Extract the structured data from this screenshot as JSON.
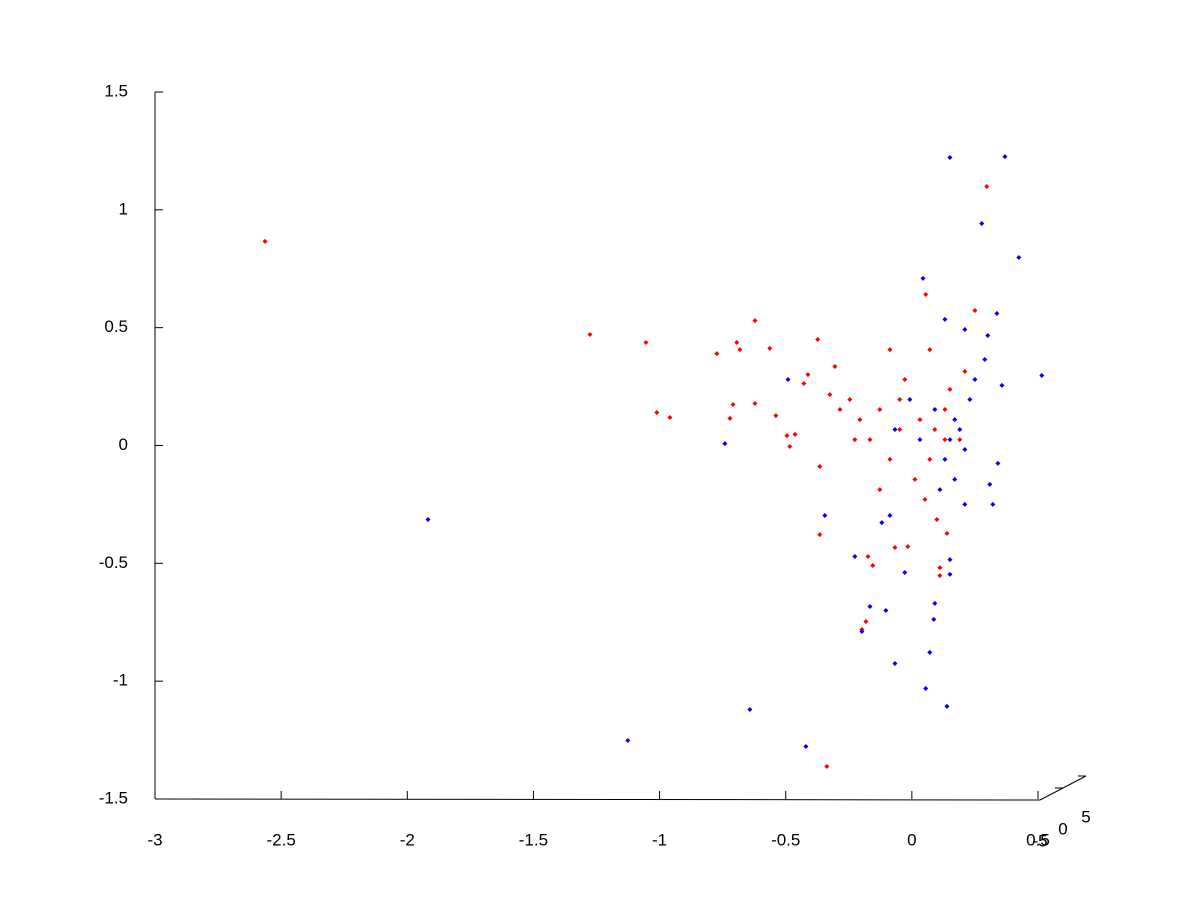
{
  "chart_data": {
    "type": "scatter",
    "xlim": [
      -3,
      0.5
    ],
    "xticks": [
      -3,
      -2.5,
      -2,
      -1.5,
      -1,
      -0.5,
      0,
      0.5
    ],
    "ylim": [
      -1.5,
      1.5
    ],
    "yticks": [
      -1.5,
      -1,
      -0.5,
      0,
      0.5,
      1,
      1.5
    ],
    "zlim": [
      -5,
      5
    ],
    "zticks": [
      -5,
      0,
      5
    ],
    "series": [
      {
        "color": "#ff0000",
        "x": [
          -2.564,
          -1.276,
          -1.054,
          -1.011,
          -0.959,
          -0.773,
          -0.694,
          -0.682,
          -0.622,
          -0.563,
          -0.709,
          -0.721,
          -0.622,
          -0.539,
          -0.495,
          -0.463,
          -0.484,
          -0.428,
          -0.412,
          -0.373,
          -0.305,
          -0.365,
          -0.365,
          -0.337,
          -0.198,
          -0.182,
          -0.155,
          -0.174,
          -0.067,
          -0.016,
          0.055,
          0.111,
          0.111,
          0.139,
          0.297,
          0.25,
          0.21,
          -0.246,
          -0.206,
          -0.127,
          -0.048,
          0.032,
          0.091,
          0.131,
          0.071,
          0.012,
          -0.087,
          -0.166,
          -0.285,
          -0.325,
          -0.028,
          -0.087,
          0.071,
          0.151,
          0.19,
          0.052,
          0.099,
          -0.127,
          -0.048,
          0.131,
          -0.226
        ],
        "values": [
          0.866,
          0.471,
          0.437,
          0.14,
          0.119,
          0.39,
          0.437,
          0.407,
          0.53,
          0.412,
          0.174,
          0.115,
          0.178,
          0.127,
          0.042,
          0.047,
          -0.004,
          0.263,
          0.301,
          0.45,
          0.335,
          -0.089,
          -0.378,
          -1.362,
          -0.781,
          -0.747,
          -0.509,
          -0.471,
          -0.433,
          -0.429,
          0.641,
          -0.518,
          -0.552,
          -0.373,
          1.099,
          0.573,
          0.314,
          0.195,
          0.11,
          0.153,
          0.068,
          0.11,
          0.068,
          0.025,
          -0.059,
          -0.144,
          -0.059,
          0.025,
          0.153,
          0.216,
          0.28,
          0.407,
          0.407,
          0.238,
          0.025,
          -0.229,
          -0.314,
          -0.187,
          0.195,
          0.153,
          0.025
        ]
      },
      {
        "color": "#0000ff",
        "x": [
          -1.918,
          -1.126,
          -0.642,
          -0.42,
          -0.741,
          -0.491,
          -0.345,
          -0.226,
          -0.198,
          -0.166,
          -0.103,
          -0.067,
          -0.028,
          0.055,
          0.071,
          0.091,
          0.087,
          0.139,
          0.151,
          0.369,
          0.277,
          0.424,
          0.515,
          0.337,
          0.301,
          0.044,
          0.151,
          0.151,
          0.21,
          0.321,
          0.341,
          0.357,
          -0.119,
          -0.087,
          0.19,
          0.17,
          0.21,
          0.151,
          0.23,
          0.131,
          0.111,
          0.17,
          0.25,
          0.289,
          -0.008,
          0.032,
          -0.067,
          0.091,
          0.21,
          0.131,
          0.309
        ],
        "values": [
          -0.314,
          -1.252,
          -1.12,
          -1.277,
          0.008,
          0.28,
          -0.297,
          -0.471,
          -0.789,
          -0.683,
          -0.7,
          -0.925,
          -0.539,
          -1.031,
          -0.878,
          -0.67,
          -0.738,
          -1.107,
          1.222,
          1.226,
          0.942,
          0.798,
          0.297,
          0.56,
          0.467,
          0.709,
          -0.484,
          -0.547,
          -0.25,
          -0.25,
          -0.076,
          0.255,
          -0.327,
          -0.297,
          0.068,
          0.11,
          -0.017,
          0.025,
          0.195,
          -0.059,
          -0.187,
          -0.144,
          0.28,
          0.365,
          0.195,
          0.025,
          0.068,
          0.153,
          0.492,
          0.535,
          -0.165
        ]
      }
    ]
  }
}
